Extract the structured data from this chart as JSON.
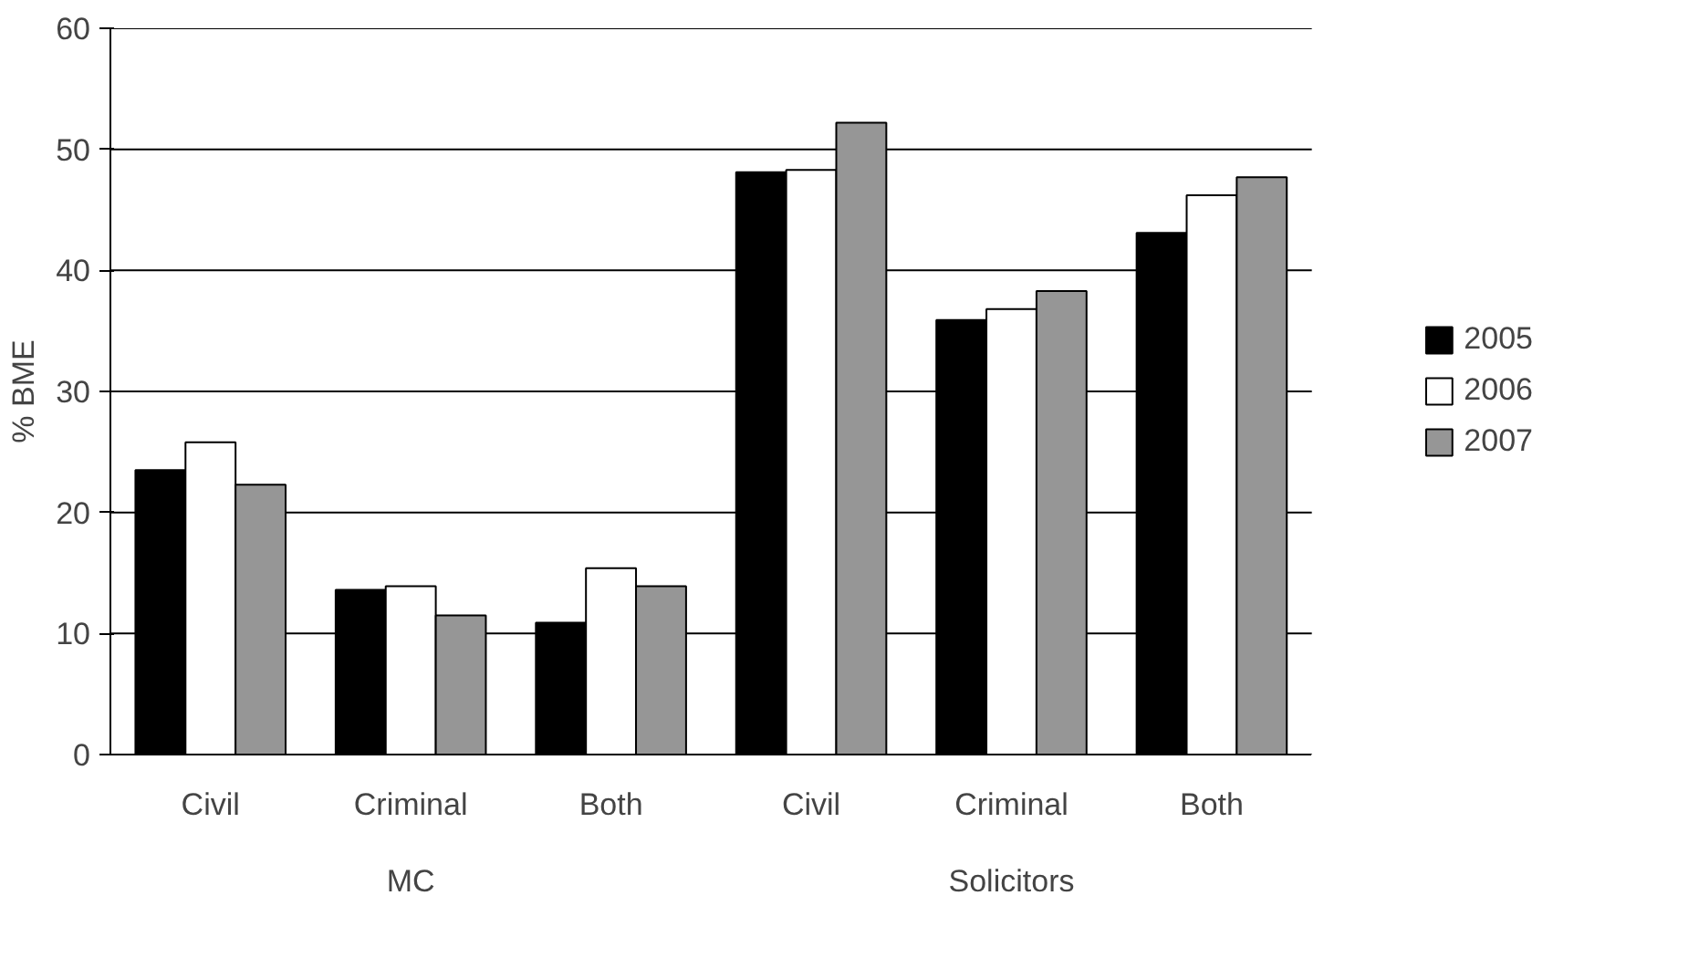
{
  "chart_data": {
    "type": "bar",
    "ylabel": "% BME",
    "categories": [
      "Civil",
      "Criminal",
      "Both",
      "Civil",
      "Criminal",
      "Both"
    ],
    "series": [
      {
        "name": "2005",
        "color": "#000000",
        "values": [
          23.5,
          13.6,
          10.9,
          48.1,
          35.9,
          43.1
        ]
      },
      {
        "name": "2006",
        "color": "#ffffff",
        "values": [
          25.8,
          13.9,
          15.4,
          48.3,
          36.8,
          46.2
        ]
      },
      {
        "name": "2007",
        "color": "#969696",
        "values": [
          22.3,
          11.5,
          13.9,
          52.2,
          38.3,
          47.7
        ]
      }
    ],
    "annotations": [
      "MC",
      "Solicitors"
    ],
    "ylim": [
      0,
      60
    ],
    "yticks": [
      0,
      10,
      20,
      30,
      40,
      50,
      60
    ],
    "grid": "y",
    "legend": "right"
  }
}
